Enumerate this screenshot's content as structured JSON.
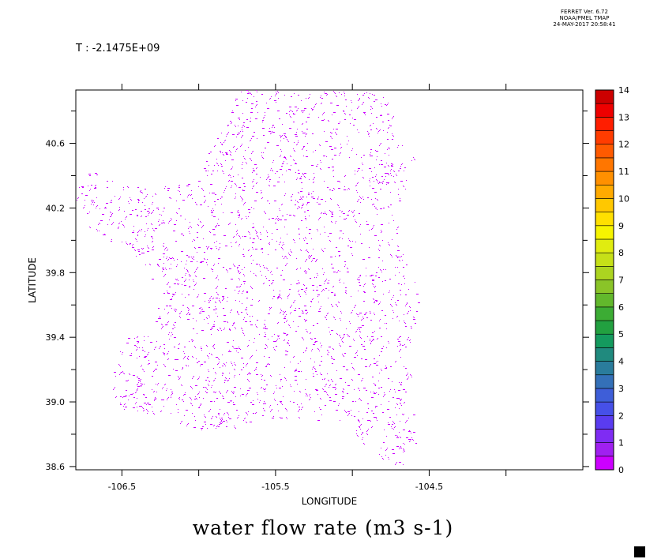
{
  "header": {
    "line1": "FERRET Ver. 6.72",
    "line2": "NOAA/PMEL TMAP",
    "line3": "24-MAY-2017 20:58:41"
  },
  "time_label": "T : -2.1475E+09",
  "title": "water flow rate (m3 s-1)",
  "chart_data": {
    "type": "heatmap",
    "title": "water flow rate (m3 s-1)",
    "xlabel": "LONGITUDE",
    "ylabel": "LATITUDE",
    "xlim": [
      -106.8,
      -103.5
    ],
    "ylim": [
      38.58,
      40.93
    ],
    "x_ticks": [
      -106.5,
      -105.5,
      -104.5
    ],
    "x_tick_labels": [
      "-106.5",
      "-105.5",
      "-104.5"
    ],
    "y_ticks": [
      38.6,
      39.0,
      39.4,
      39.8,
      40.2,
      40.6
    ],
    "y_tick_labels": [
      "38.6",
      "39.0",
      "39.4",
      "39.8",
      "40.2",
      "40.6"
    ],
    "dominant_value_range": [
      0,
      1
    ],
    "dominant_color": "#cc00ff",
    "grid": false,
    "colorbar": {
      "min": 0,
      "max": 14,
      "step": 0.5,
      "labels": [
        "0",
        "1",
        "2",
        "3",
        "4",
        "5",
        "6",
        "7",
        "8",
        "9",
        "10",
        "11",
        "12",
        "13",
        "14"
      ],
      "colors": [
        "#cc00ff",
        "#a020f0",
        "#7f2cf3",
        "#5a3cf0",
        "#4650e8",
        "#3e5ed8",
        "#3470b8",
        "#2a7c9c",
        "#208a7e",
        "#149a5e",
        "#22a040",
        "#3cac34",
        "#62b82c",
        "#8ac428",
        "#acd420",
        "#c6e018",
        "#e0ec10",
        "#f6f400",
        "#ffe000",
        "#ffc800",
        "#ffaa00",
        "#ff9000",
        "#ff7600",
        "#ff5a00",
        "#ff3c00",
        "#ff1e00",
        "#ee0000",
        "#cc0000"
      ]
    },
    "domain_outline": [
      [
        -106.78,
        40.33
      ],
      [
        -106.72,
        40.44
      ],
      [
        -106.6,
        40.38
      ],
      [
        -106.4,
        40.33
      ],
      [
        -106.2,
        40.34
      ],
      [
        -106.02,
        40.36
      ],
      [
        -105.9,
        40.6
      ],
      [
        -105.82,
        40.78
      ],
      [
        -105.72,
        40.93
      ],
      [
        -105.3,
        40.93
      ],
      [
        -104.82,
        40.93
      ],
      [
        -104.72,
        40.78
      ],
      [
        -104.6,
        40.52
      ],
      [
        -104.65,
        40.34
      ],
      [
        -104.7,
        40.05
      ],
      [
        -104.62,
        39.8
      ],
      [
        -104.55,
        39.62
      ],
      [
        -104.6,
        39.4
      ],
      [
        -104.63,
        39.15
      ],
      [
        -104.6,
        38.9
      ],
      [
        -104.58,
        38.7
      ],
      [
        -104.66,
        38.59
      ],
      [
        -104.92,
        38.7
      ],
      [
        -105.0,
        38.85
      ],
      [
        -105.4,
        38.9
      ],
      [
        -105.72,
        38.86
      ],
      [
        -105.95,
        38.82
      ],
      [
        -106.3,
        38.9
      ],
      [
        -106.53,
        38.95
      ],
      [
        -106.58,
        39.1
      ],
      [
        -106.5,
        39.4
      ],
      [
        -106.28,
        39.42
      ],
      [
        -106.25,
        39.7
      ],
      [
        -106.35,
        39.82
      ],
      [
        -106.55,
        39.97
      ],
      [
        -106.72,
        40.08
      ],
      [
        -106.8,
        40.25
      ]
    ]
  }
}
